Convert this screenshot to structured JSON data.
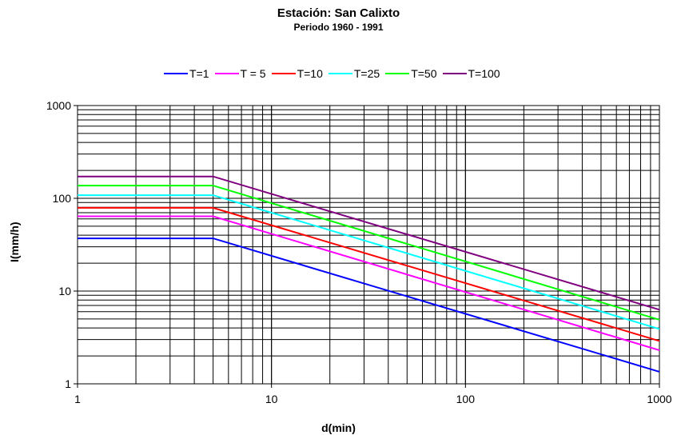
{
  "chart_data": {
    "type": "line",
    "title": "Estación: San Calixto",
    "subtitle": "Periodo 1960 - 1991",
    "xlabel": "d(min)",
    "ylabel": "I(mm/h)",
    "x_scale": "log",
    "y_scale": "log",
    "xlim": [
      1,
      1000
    ],
    "ylim": [
      1,
      1000
    ],
    "x_ticks": [
      "1",
      "10",
      "100",
      "1000"
    ],
    "y_ticks": [
      "1",
      "10",
      "100",
      "1000"
    ],
    "grid": true,
    "legend_position": "top",
    "series": [
      {
        "name": "T=1",
        "color": "#0000ff",
        "x": [
          1,
          5,
          1000
        ],
        "y": [
          37,
          37,
          1.35
        ]
      },
      {
        "name": "T = 5",
        "color": "#ff00ff",
        "x": [
          1,
          5,
          1000
        ],
        "y": [
          64,
          64,
          2.3
        ]
      },
      {
        "name": "T=10",
        "color": "#ff0000",
        "x": [
          1,
          5,
          1000
        ],
        "y": [
          79,
          79,
          2.9
        ]
      },
      {
        "name": "T=25",
        "color": "#00ffff",
        "x": [
          1,
          5,
          1000
        ],
        "y": [
          108,
          108,
          3.9
        ]
      },
      {
        "name": "T=50",
        "color": "#00ff00",
        "x": [
          1,
          5,
          1000
        ],
        "y": [
          137,
          137,
          4.9
        ]
      },
      {
        "name": "T=100",
        "color": "#800080",
        "x": [
          1,
          5,
          1000
        ],
        "y": [
          172,
          172,
          6.3
        ]
      }
    ]
  }
}
